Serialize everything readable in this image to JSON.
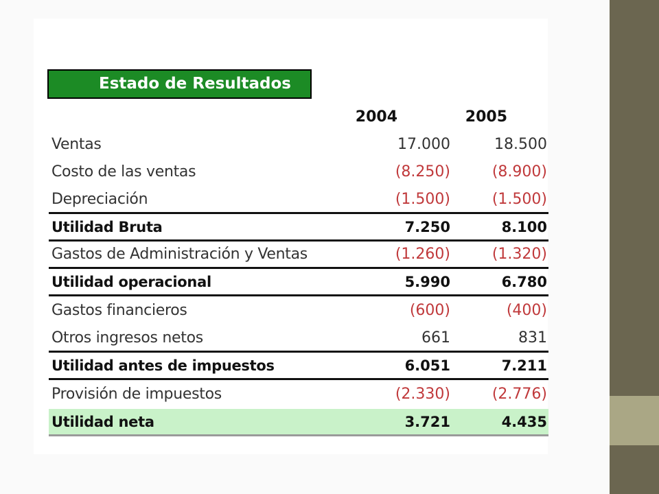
{
  "statement": {
    "title": "Estado de Resultados",
    "years": [
      "2004",
      "2005"
    ],
    "rows": [
      {
        "label": "Ventas",
        "v2004": "17.000",
        "v2005": "18.500"
      },
      {
        "label": "Costo de las ventas",
        "v2004": "(8.250)",
        "v2005": "(8.900)"
      },
      {
        "label": "Depreciación",
        "v2004": "(1.500)",
        "v2005": "(1.500)"
      },
      {
        "label": "Utilidad Bruta",
        "v2004": "7.250",
        "v2005": "8.100"
      },
      {
        "label": "Gastos de Administración y Ventas",
        "v2004": "(1.260)",
        "v2005": "(1.320)"
      },
      {
        "label": "Utilidad operacional",
        "v2004": "5.990",
        "v2005": "6.780"
      },
      {
        "label": "Gastos financieros",
        "v2004": "(600)",
        "v2005": "(400)"
      },
      {
        "label": "Otros ingresos netos",
        "v2004": "661",
        "v2005": "831"
      },
      {
        "label": "Utilidad antes de impuestos",
        "v2004": "6.051",
        "v2005": "7.211"
      },
      {
        "label": "Provisión de impuestos",
        "v2004": "(2.330)",
        "v2005": "(2.776)"
      },
      {
        "label": "Utilidad neta",
        "v2004": "3.721",
        "v2005": "4.435"
      }
    ]
  },
  "colors": {
    "title_bg": "#1c8b25",
    "negative_text": "#c0393b",
    "net_income_bg": "#c9f2c9",
    "sidebar": "#6b6650",
    "sidebar_band": "#aaa785"
  }
}
